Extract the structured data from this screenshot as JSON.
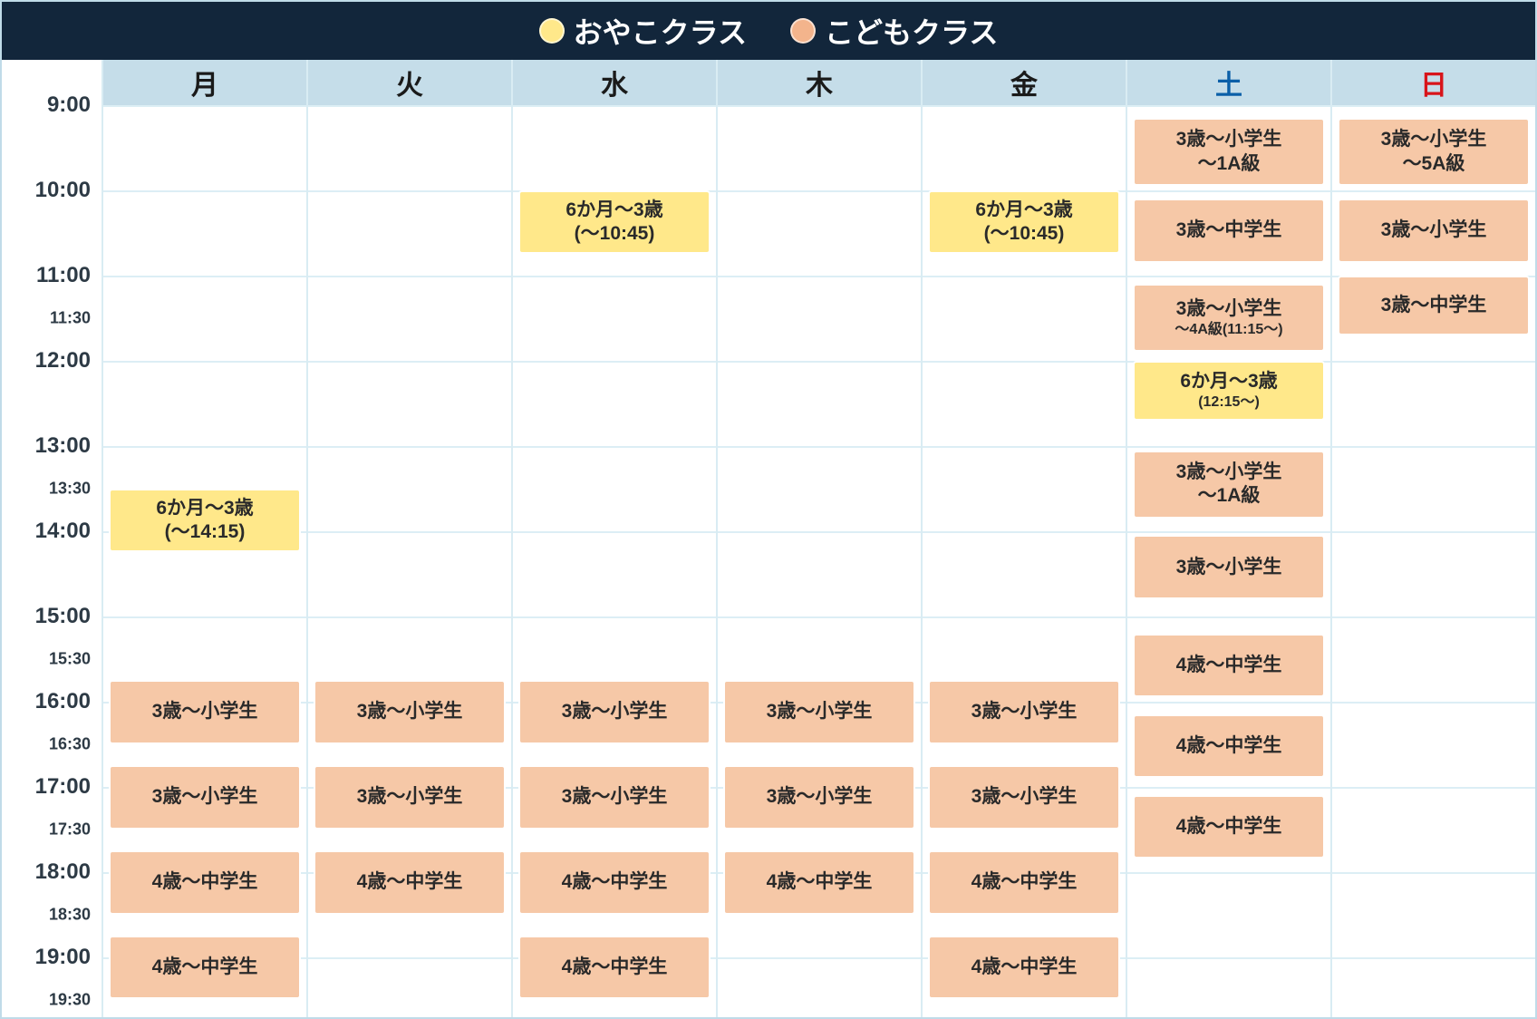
{
  "colors": {
    "header_bg": "#12263b",
    "header_text": "#ffffff",
    "oyako_dot": "#ffe88a",
    "kodomo_dot": "#f3b48c",
    "day_header_bg": "#c5dde9",
    "day_text": "#1a1a1a",
    "sat_text": "#0a5fa8",
    "sun_text": "#d8141a",
    "grid_line": "#dceef5",
    "oyako_bg": "#ffe88a",
    "kodomo_bg": "#f6c8a7",
    "page_bg": "#ffffff"
  },
  "legend": {
    "oyako_label": "おやこクラス",
    "kodomo_label": "こどもクラス"
  },
  "days": [
    "月",
    "火",
    "水",
    "木",
    "金",
    "土",
    "日"
  ],
  "timeRange": {
    "start": 9.0,
    "end": 19.75
  },
  "timeLabels": [
    {
      "t": 9.0,
      "text": "9:00",
      "kind": "major"
    },
    {
      "t": 10.0,
      "text": "10:00",
      "kind": "major"
    },
    {
      "t": 11.0,
      "text": "11:00",
      "kind": "major"
    },
    {
      "t": 11.5,
      "text": "11:30",
      "kind": "minor"
    },
    {
      "t": 12.0,
      "text": "12:00",
      "kind": "major"
    },
    {
      "t": 13.0,
      "text": "13:00",
      "kind": "major"
    },
    {
      "t": 13.5,
      "text": "13:30",
      "kind": "minor"
    },
    {
      "t": 14.0,
      "text": "14:00",
      "kind": "major"
    },
    {
      "t": 15.0,
      "text": "15:00",
      "kind": "major"
    },
    {
      "t": 15.5,
      "text": "15:30",
      "kind": "minor"
    },
    {
      "t": 16.0,
      "text": "16:00",
      "kind": "major"
    },
    {
      "t": 16.5,
      "text": "16:30",
      "kind": "minor"
    },
    {
      "t": 17.0,
      "text": "17:00",
      "kind": "major"
    },
    {
      "t": 17.5,
      "text": "17:30",
      "kind": "minor"
    },
    {
      "t": 18.0,
      "text": "18:00",
      "kind": "major"
    },
    {
      "t": 18.5,
      "text": "18:30",
      "kind": "minor"
    },
    {
      "t": 19.0,
      "text": "19:00",
      "kind": "major"
    },
    {
      "t": 19.5,
      "text": "19:30",
      "kind": "minor"
    }
  ],
  "gridHourLines": [
    9,
    10,
    11,
    12,
    13,
    14,
    15,
    16,
    17,
    18,
    19
  ],
  "events": [
    {
      "day": 0,
      "start": 13.5,
      "end": 14.25,
      "type": "oyako",
      "line1": "6か月～3歳",
      "line2": "(～14:15)"
    },
    {
      "day": 0,
      "start": 15.75,
      "end": 16.5,
      "type": "kodomo",
      "line1": "3歳～小学生"
    },
    {
      "day": 0,
      "start": 16.75,
      "end": 17.5,
      "type": "kodomo",
      "line1": "3歳～小学生"
    },
    {
      "day": 0,
      "start": 17.75,
      "end": 18.5,
      "type": "kodomo",
      "line1": "4歳～中学生"
    },
    {
      "day": 0,
      "start": 18.75,
      "end": 19.5,
      "type": "kodomo",
      "line1": "4歳～中学生"
    },
    {
      "day": 1,
      "start": 15.75,
      "end": 16.5,
      "type": "kodomo",
      "line1": "3歳～小学生"
    },
    {
      "day": 1,
      "start": 16.75,
      "end": 17.5,
      "type": "kodomo",
      "line1": "3歳～小学生"
    },
    {
      "day": 1,
      "start": 17.75,
      "end": 18.5,
      "type": "kodomo",
      "line1": "4歳～中学生"
    },
    {
      "day": 2,
      "start": 10.0,
      "end": 10.75,
      "type": "oyako",
      "line1": "6か月～3歳",
      "line2": "(～10:45)"
    },
    {
      "day": 2,
      "start": 15.75,
      "end": 16.5,
      "type": "kodomo",
      "line1": "3歳～小学生"
    },
    {
      "day": 2,
      "start": 16.75,
      "end": 17.5,
      "type": "kodomo",
      "line1": "3歳～小学生"
    },
    {
      "day": 2,
      "start": 17.75,
      "end": 18.5,
      "type": "kodomo",
      "line1": "4歳～中学生"
    },
    {
      "day": 2,
      "start": 18.75,
      "end": 19.5,
      "type": "kodomo",
      "line1": "4歳～中学生"
    },
    {
      "day": 3,
      "start": 15.75,
      "end": 16.5,
      "type": "kodomo",
      "line1": "3歳～小学生"
    },
    {
      "day": 3,
      "start": 16.75,
      "end": 17.5,
      "type": "kodomo",
      "line1": "3歳～小学生"
    },
    {
      "day": 3,
      "start": 17.75,
      "end": 18.5,
      "type": "kodomo",
      "line1": "4歳～中学生"
    },
    {
      "day": 4,
      "start": 10.0,
      "end": 10.75,
      "type": "oyako",
      "line1": "6か月～3歳",
      "line2": "(～10:45)"
    },
    {
      "day": 4,
      "start": 15.75,
      "end": 16.5,
      "type": "kodomo",
      "line1": "3歳～小学生"
    },
    {
      "day": 4,
      "start": 16.75,
      "end": 17.5,
      "type": "kodomo",
      "line1": "3歳～小学生"
    },
    {
      "day": 4,
      "start": 17.75,
      "end": 18.5,
      "type": "kodomo",
      "line1": "4歳～中学生"
    },
    {
      "day": 4,
      "start": 18.75,
      "end": 19.5,
      "type": "kodomo",
      "line1": "4歳～中学生"
    },
    {
      "day": 5,
      "start": 9.15,
      "end": 9.95,
      "type": "kodomo",
      "line1": "3歳～小学生",
      "line2": "～1A級"
    },
    {
      "day": 5,
      "start": 10.1,
      "end": 10.85,
      "type": "kodomo",
      "line1": "3歳～中学生"
    },
    {
      "day": 5,
      "start": 11.1,
      "end": 11.9,
      "type": "kodomo",
      "line1": "3歳～小学生",
      "line2": "～4A級(11:15～)",
      "small2": true
    },
    {
      "day": 5,
      "start": 12.0,
      "end": 12.7,
      "type": "oyako",
      "line1": "6か月～3歳",
      "line2": "(12:15～)",
      "small2": true
    },
    {
      "day": 5,
      "start": 13.05,
      "end": 13.85,
      "type": "kodomo",
      "line1": "3歳～小学生",
      "line2": "～1A級"
    },
    {
      "day": 5,
      "start": 14.05,
      "end": 14.8,
      "type": "kodomo",
      "line1": "3歳～小学生"
    },
    {
      "day": 5,
      "start": 15.2,
      "end": 15.95,
      "type": "kodomo",
      "line1": "4歳～中学生"
    },
    {
      "day": 5,
      "start": 16.15,
      "end": 16.9,
      "type": "kodomo",
      "line1": "4歳～中学生"
    },
    {
      "day": 5,
      "start": 17.1,
      "end": 17.85,
      "type": "kodomo",
      "line1": "4歳～中学生"
    },
    {
      "day": 6,
      "start": 9.15,
      "end": 9.95,
      "type": "kodomo",
      "line1": "3歳～小学生",
      "line2": "～5A級"
    },
    {
      "day": 6,
      "start": 10.1,
      "end": 10.85,
      "type": "kodomo",
      "line1": "3歳～小学生"
    },
    {
      "day": 6,
      "start": 11.0,
      "end": 11.7,
      "type": "kodomo",
      "line1": "3歳～中学生"
    }
  ]
}
